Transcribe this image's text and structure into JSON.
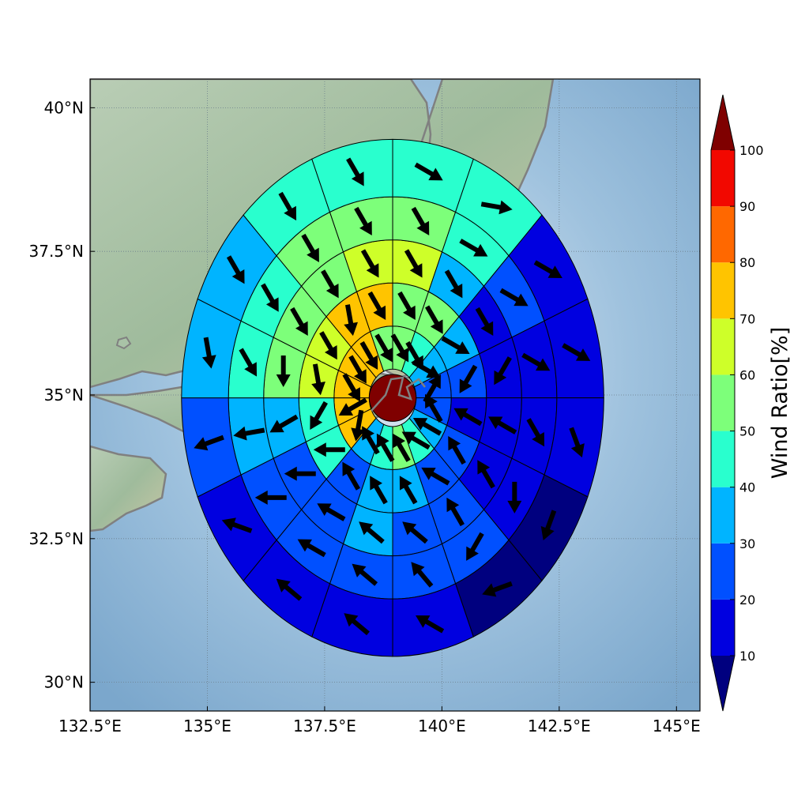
{
  "axes": {
    "x_ticks": [
      "132.5°E",
      "135°E",
      "137.5°E",
      "140°E",
      "142.5°E",
      "145°E"
    ],
    "y_ticks": [
      "30°N",
      "32.5°N",
      "35°N",
      "37.5°N",
      "40°N"
    ]
  },
  "colorbar": {
    "label": "Wind Ratio[%]",
    "ticks": [
      "10",
      "20",
      "30",
      "40",
      "50",
      "60",
      "70",
      "80",
      "90",
      "100"
    ]
  },
  "colors": {
    "under": "#00007f",
    "b0_10": "#00007f",
    "b10_20": "#0000e0",
    "b20_30": "#0050ff",
    "b30_40": "#00b4ff",
    "b40_50": "#29ffce",
    "b50_60": "#7dff7a",
    "b60_70": "#ceff29",
    "b70_80": "#ffc400",
    "b80_90": "#ff6800",
    "b90_100": "#f20800",
    "over": "#7f0000",
    "ocean": "#8cb3d3",
    "land": "#a9c3a7",
    "coast": "#808080",
    "grid": "#6c7f8c"
  },
  "chart_data": {
    "type": "polar-sector-map",
    "xlim": [
      132.5,
      145.5
    ],
    "ylim": [
      29.5,
      40.5
    ],
    "center": {
      "lon": 138.95,
      "lat": 34.95
    },
    "ring_edges_deg": [
      0.5,
      1.25,
      2.0,
      2.75,
      3.5,
      4.5
    ],
    "sector_count": 16,
    "colorbar_range": [
      10,
      100
    ],
    "center_value": 100,
    "rings": [
      {
        "ring": 1,
        "values": [
          55,
          45,
          35,
          25,
          25,
          35,
          40,
          55,
          45,
          35,
          75,
          75,
          75,
          75,
          75,
          55
        ]
      },
      {
        "ring": 2,
        "values": [
          55,
          55,
          35,
          25,
          15,
          25,
          25,
          35,
          35,
          25,
          45,
          45,
          65,
          65,
          75,
          75
        ]
      },
      {
        "ring": 3,
        "values": [
          65,
          35,
          15,
          15,
          15,
          15,
          25,
          25,
          35,
          25,
          25,
          35,
          55,
          55,
          55,
          65
        ]
      },
      {
        "ring": 4,
        "values": [
          55,
          45,
          25,
          15,
          15,
          15,
          25,
          25,
          25,
          25,
          25,
          35,
          45,
          45,
          55,
          55
        ]
      },
      {
        "ring": 5,
        "values": [
          45,
          45,
          15,
          15,
          15,
          5,
          5,
          15,
          15,
          15,
          15,
          25,
          35,
          35,
          45,
          45
        ]
      }
    ],
    "vector_angles_deg": [
      [
        300,
        300,
        330,
        60,
        120,
        150,
        150,
        120,
        120,
        120,
        260,
        210,
        300,
        300,
        300,
        300
      ],
      [
        300,
        300,
        330,
        240,
        150,
        120,
        150,
        120,
        120,
        120,
        180,
        240,
        280,
        300,
        280,
        300
      ],
      [
        300,
        300,
        300,
        240,
        150,
        120,
        120,
        140,
        140,
        150,
        180,
        210,
        270,
        300,
        300,
        300
      ],
      [
        300,
        330,
        330,
        330,
        300,
        270,
        240,
        130,
        140,
        150,
        180,
        190,
        300,
        300,
        300,
        300
      ],
      [
        330,
        350,
        330,
        330,
        290,
        250,
        200,
        150,
        140,
        140,
        160,
        200,
        280,
        300,
        300,
        300
      ]
    ]
  }
}
